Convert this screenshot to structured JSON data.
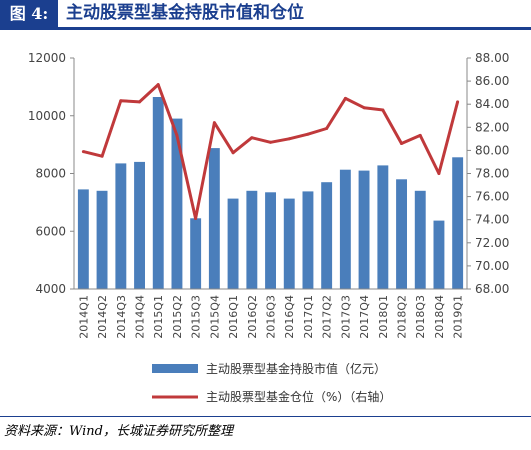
{
  "figure": {
    "label": "图 4:",
    "title": "主动股票型基金持股市值和仓位"
  },
  "source": "资料来源：Wind，长城证券研究所整理",
  "colors": {
    "bar": "#4a7ebb",
    "line": "#c0393b",
    "header": "#1b3f8f"
  },
  "chart_data": {
    "type": "bar",
    "categories": [
      "2014Q1",
      "2014Q2",
      "2014Q3",
      "2014Q4",
      "2015Q1",
      "2015Q2",
      "2015Q3",
      "2015Q4",
      "2016Q1",
      "2016Q2",
      "2016Q3",
      "2016Q4",
      "2017Q1",
      "2017Q2",
      "2017Q3",
      "2017Q4",
      "2018Q1",
      "2018Q2",
      "2018Q3",
      "2018Q4",
      "2019Q1"
    ],
    "series": [
      {
        "name": "主动股票型基金持股市值（亿元）",
        "type": "bar",
        "axis": "left",
        "values": [
          7450,
          7400,
          8350,
          8400,
          10650,
          9900,
          6450,
          8880,
          7130,
          7400,
          7350,
          7130,
          7380,
          7700,
          8130,
          8100,
          8280,
          7800,
          7400,
          6370,
          8560
        ]
      },
      {
        "name": "主动股票型基金仓位（%）（右轴）",
        "type": "line",
        "axis": "right",
        "values": [
          79.9,
          79.5,
          84.3,
          84.2,
          85.7,
          81.3,
          74.1,
          82.4,
          79.8,
          81.1,
          80.7,
          81.0,
          81.4,
          81.9,
          84.5,
          83.7,
          83.5,
          80.6,
          81.3,
          78.0,
          84.2
        ]
      }
    ],
    "y_left": {
      "min": 4000,
      "max": 12000,
      "ticks": [
        "4000",
        "6000",
        "8000",
        "10000",
        "12000"
      ]
    },
    "y_right": {
      "min": 68,
      "max": 88,
      "ticks": [
        "68.00",
        "70.00",
        "72.00",
        "74.00",
        "76.00",
        "78.00",
        "80.00",
        "82.00",
        "84.00",
        "86.00",
        "88.00"
      ]
    },
    "grid": false,
    "legend_position": "bottom"
  }
}
